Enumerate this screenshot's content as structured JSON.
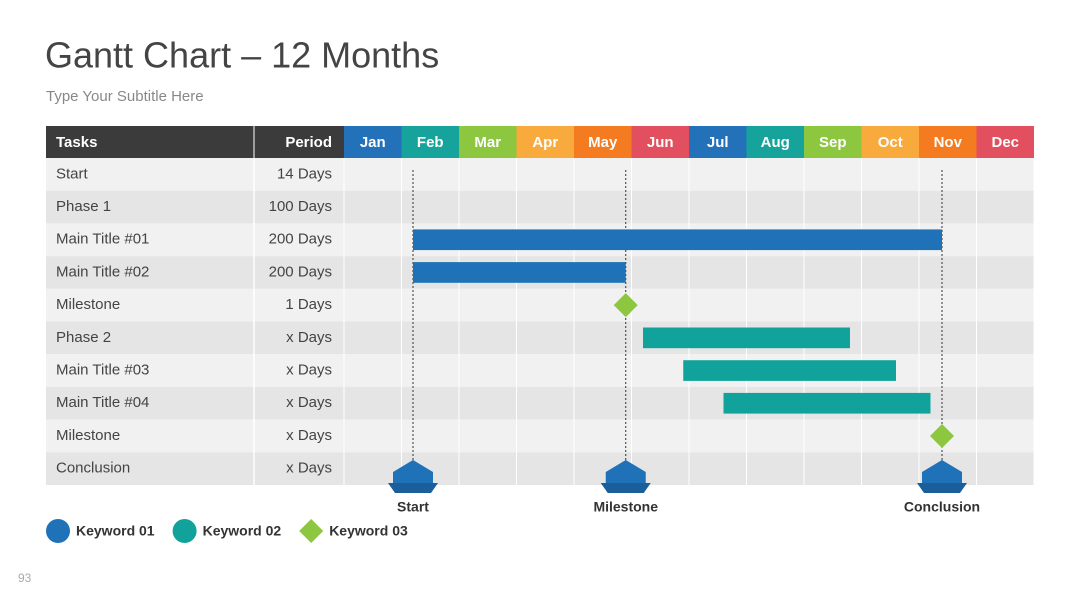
{
  "header": {
    "title": "Gantt Chart – 12 Months",
    "subtitle": "Type Your Subtitle Here"
  },
  "table": {
    "columns": [
      "Tasks",
      "Period"
    ],
    "months": [
      {
        "label": "Jan",
        "color": "#2271b9"
      },
      {
        "label": "Feb",
        "color": "#16a39b"
      },
      {
        "label": "Mar",
        "color": "#8dc63f"
      },
      {
        "label": "Apr",
        "color": "#f9aa3c"
      },
      {
        "label": "May",
        "color": "#f47b20"
      },
      {
        "label": "Jun",
        "color": "#e2505f"
      },
      {
        "label": "Jul",
        "color": "#2271b9"
      },
      {
        "label": "Aug",
        "color": "#16a39b"
      },
      {
        "label": "Sep",
        "color": "#8dc63f"
      },
      {
        "label": "Oct",
        "color": "#f9aa3c"
      },
      {
        "label": "Nov",
        "color": "#f47b20"
      },
      {
        "label": "Dec",
        "color": "#e2505f"
      }
    ],
    "rows": [
      {
        "task": "Start",
        "period": "14 Days"
      },
      {
        "task": "Phase 1",
        "period": "100 Days"
      },
      {
        "task": "Main Title #01",
        "period": "200 Days",
        "bar": {
          "start": 1.2,
          "end": 10.4,
          "color": "#1f72b8"
        }
      },
      {
        "task": "Main Title #02",
        "period": "200 Days",
        "bar": {
          "start": 1.2,
          "end": 4.9,
          "color": "#1f72b8"
        }
      },
      {
        "task": "Milestone",
        "period": "1 Days",
        "milestone": {
          "at": 4.9,
          "color": "#8dc63f"
        }
      },
      {
        "task": "Phase 2",
        "period": "x Days",
        "bar": {
          "start": 5.2,
          "end": 8.8,
          "color": "#11a39b"
        }
      },
      {
        "task": "Main Title #03",
        "period": "x Days",
        "bar": {
          "start": 5.9,
          "end": 9.6,
          "color": "#11a39b"
        }
      },
      {
        "task": "Main Title #04",
        "period": "x Days",
        "bar": {
          "start": 6.6,
          "end": 10.2,
          "color": "#11a39b"
        }
      },
      {
        "task": "Milestone",
        "period": "x Days",
        "milestone": {
          "at": 10.4,
          "color": "#8dc63f"
        }
      },
      {
        "task": "Conclusion",
        "period": "x Days"
      }
    ]
  },
  "markers": {
    "color": "#1f72b8",
    "items": [
      {
        "label": "Start",
        "at": 1.2
      },
      {
        "label": "Milestone",
        "at": 4.9
      },
      {
        "label": "Conclusion",
        "at": 10.4
      }
    ]
  },
  "legend": [
    {
      "label": "Keyword 01",
      "color": "#1f72b8",
      "shape": "circle"
    },
    {
      "label": "Keyword 02",
      "color": "#11a39b",
      "shape": "circle"
    },
    {
      "label": "Keyword 03",
      "color": "#8dc63f",
      "shape": "diamond"
    }
  ],
  "page_number": "93"
}
